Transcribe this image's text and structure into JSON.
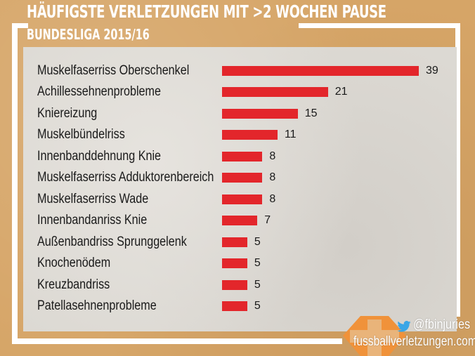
{
  "chart_data": {
    "type": "bar",
    "orientation": "horizontal",
    "title": "HÄUFIGSTE VERLETZUNGEN MIT >2 WOCHEN PAUSE",
    "subtitle": "BUNDESLIGA 2015/16",
    "categories": [
      "Muskelfaserriss Oberschenkel",
      "Achillessehnenprobleme",
      "Kniereizung",
      "Muskelbündelriss",
      "Innenbanddehnung Knie",
      "Muskelfaserriss Adduktorenbereich",
      "Muskelfaserriss Wade",
      "Innenbandanriss Knie",
      "Außenbandriss Sprunggelenk",
      "Knochenödem",
      "Kreuzbandriss",
      "Patellasehnenprobleme"
    ],
    "values": [
      39,
      21,
      15,
      11,
      8,
      8,
      8,
      7,
      5,
      5,
      5,
      5
    ],
    "xlim": [
      0,
      39
    ],
    "grid": false,
    "bar_color": "#e3262b"
  },
  "footer": {
    "twitter": "@fbinjuries",
    "website": "fussballverletzungen.com",
    "twitter_icon": "twitter-bird-icon"
  }
}
